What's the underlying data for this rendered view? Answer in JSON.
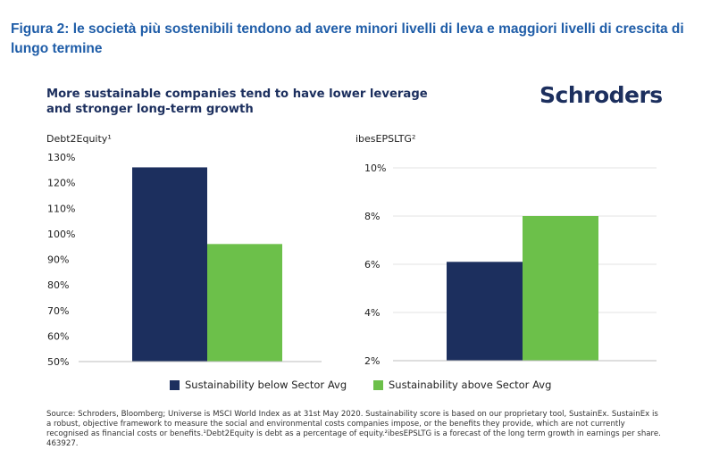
{
  "figure_caption": "Figura 2: le società più sostenibili tendono ad avere minori livelli di leva e maggiori livelli di crescita di lungo termine",
  "chart_title": "More sustainable companies tend to have lower leverage and stronger long-term growth",
  "brand": "Schroders",
  "colors": {
    "below": "#1c2f5e",
    "above": "#6cc04a",
    "brand": "#1c2f5e",
    "caption": "#1f5da8"
  },
  "legend": [
    {
      "label": "Sustainability below Sector Avg",
      "color": "#1c2f5e"
    },
    {
      "label": "Sustainability above Sector Avg",
      "color": "#6cc04a"
    }
  ],
  "chart_data": [
    {
      "type": "bar",
      "ylabel": "Debt2Equity¹",
      "categories": [
        ""
      ],
      "series": [
        {
          "name": "Sustainability below Sector Avg",
          "values": [
            126
          ]
        },
        {
          "name": "Sustainability above Sector Avg",
          "values": [
            96
          ]
        }
      ],
      "ylim": [
        50,
        130
      ],
      "yticks": [
        50,
        60,
        70,
        80,
        90,
        100,
        110,
        120,
        130
      ],
      "tick_labels": [
        "50%",
        "60%",
        "70%",
        "80%",
        "90%",
        "100%",
        "110%",
        "120%",
        "130%"
      ],
      "grid": false
    },
    {
      "type": "bar",
      "ylabel": "ibesEPSLTG²",
      "categories": [
        ""
      ],
      "series": [
        {
          "name": "Sustainability below Sector Avg",
          "values": [
            6.1
          ]
        },
        {
          "name": "Sustainability above Sector Avg",
          "values": [
            8.0
          ]
        }
      ],
      "ylim": [
        2,
        10
      ],
      "yticks": [
        2,
        4,
        6,
        8,
        10
      ],
      "tick_labels": [
        "2%",
        "4%",
        "6%",
        "8%",
        "10%"
      ],
      "grid": true
    }
  ],
  "source_note": "Source: Schroders, Bloomberg; Universe is MSCI World Index as at 31st May 2020. Sustainability score is based on our proprietary tool, SustainEx. SustainEx is a robust, objective framework to measure the social and environmental costs companies impose, or the benefits they provide, which are not currently recognised as financial costs or benefits.¹Debt2Equity is debt as a percentage of equity.²ibesEPSLTG is a forecast of the long term growth in earnings per share. 463927."
}
